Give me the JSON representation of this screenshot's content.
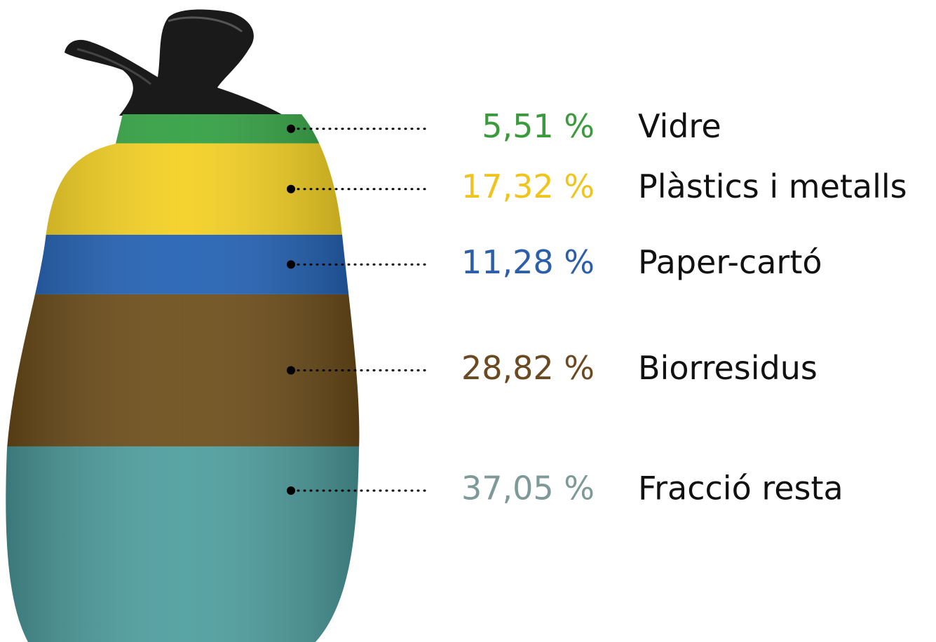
{
  "chart_data": {
    "type": "bar",
    "categories": [
      "Vidre",
      "Plàstics i metalls",
      "Paper-cartó",
      "Biorresidus",
      "Fracció resta"
    ],
    "values": [
      5.51,
      17.32,
      11.28,
      28.82,
      37.05
    ],
    "value_labels": [
      "5,51 %",
      "17,32 %",
      "11,28 %",
      "28,82 %",
      "37,05 %"
    ],
    "colors": [
      "#2f9e3f",
      "#f3cf1e",
      "#1f5fb3",
      "#6b4b16",
      "#4b9c9d"
    ],
    "label_colors": [
      "#3a9a3c",
      "#f0c41f",
      "#2d5ea8",
      "#6b4a22",
      "#7d9a98"
    ]
  }
}
